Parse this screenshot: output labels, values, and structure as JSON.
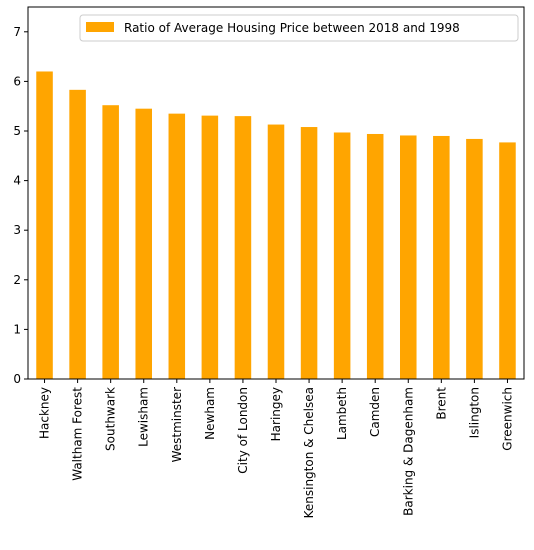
{
  "chart_data": {
    "type": "bar",
    "categories": [
      "Hackney",
      "Waltham Forest",
      "Southwark",
      "Lewisham",
      "Westminster",
      "Newham",
      "City of London",
      "Haringey",
      "Kensington & Chelsea",
      "Lambeth",
      "Camden",
      "Barking & Dagenham",
      "Brent",
      "Islington",
      "Greenwich"
    ],
    "series": [
      {
        "name": "Ratio of Average Housing Price between 2018 and 1998",
        "values": [
          6.2,
          5.83,
          5.52,
          5.45,
          5.35,
          5.31,
          5.3,
          5.13,
          5.08,
          4.97,
          4.94,
          4.91,
          4.9,
          4.84,
          4.77
        ],
        "color": "#ffa500"
      }
    ],
    "xlabel": "",
    "ylabel": "",
    "ylim": [
      0,
      7.5
    ],
    "yticks": [
      "0",
      "1",
      "2",
      "3",
      "4",
      "5",
      "6",
      "7"
    ],
    "legend_position": "top-right",
    "grid": false
  }
}
